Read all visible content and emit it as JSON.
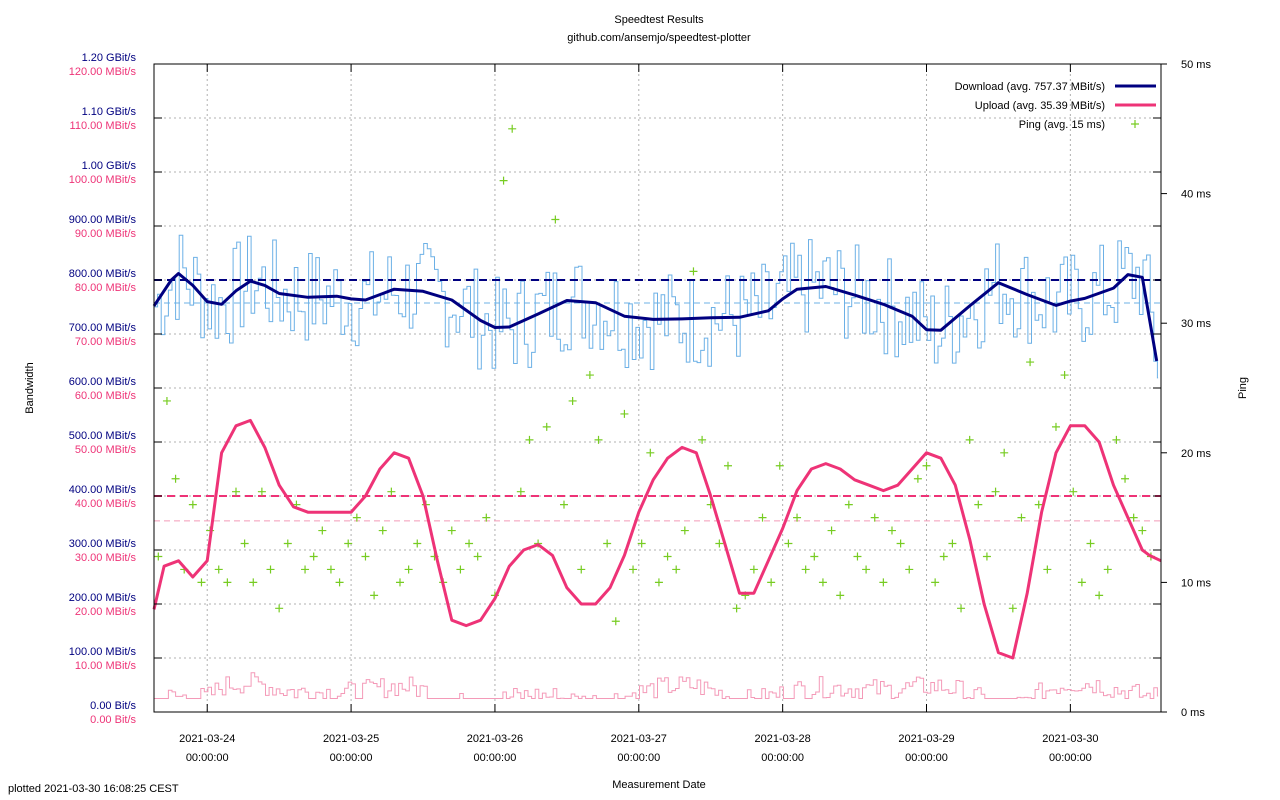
{
  "chart_data": {
    "type": "line",
    "title": "Speedtest Results",
    "subtitle": "github.com/ansemjo/speedtest-plotter",
    "xlabel": "Measurement Date",
    "ylabel": "Bandwidth",
    "y2label": "Ping",
    "footer": "plotted 2021-03-30 16:08:25 CEST",
    "x_ticks": [
      {
        "date": "2021-03-24",
        "time": "00:00:00"
      },
      {
        "date": "2021-03-25",
        "time": "00:00:00"
      },
      {
        "date": "2021-03-26",
        "time": "00:00:00"
      },
      {
        "date": "2021-03-27",
        "time": "00:00:00"
      },
      {
        "date": "2021-03-28",
        "time": "00:00:00"
      },
      {
        "date": "2021-03-29",
        "time": "00:00:00"
      },
      {
        "date": "2021-03-30",
        "time": "00:00:00"
      }
    ],
    "x_range_days": [
      -0.37,
      6.63
    ],
    "y_range_mbits": [
      0,
      1200
    ],
    "y2_range_ms": [
      0,
      50
    ],
    "y_ticks_download": [
      "0.00  Bit/s",
      "100.00 MBit/s",
      "200.00 MBit/s",
      "300.00 MBit/s",
      "400.00 MBit/s",
      "500.00 MBit/s",
      "600.00 MBit/s",
      "700.00 MBit/s",
      "800.00 MBit/s",
      "900.00 MBit/s",
      "1.00 GBit/s",
      "1.10 GBit/s",
      "1.20 GBit/s"
    ],
    "y_ticks_upload": [
      "0.00  Bit/s",
      "10.00 MBit/s",
      "20.00 MBit/s",
      "30.00 MBit/s",
      "40.00 MBit/s",
      "50.00 MBit/s",
      "60.00 MBit/s",
      "70.00 MBit/s",
      "80.00 MBit/s",
      "90.00 MBit/s",
      "100.00 MBit/s",
      "110.00 MBit/s",
      "120.00 MBit/s"
    ],
    "y2_ticks": [
      "0 ms",
      "10 ms",
      "20 ms",
      "30 ms",
      "40 ms",
      "50 ms"
    ],
    "legend": [
      {
        "label": "Download (avg. 757.37 MBit/s)",
        "color": "#000080",
        "kind": "line"
      },
      {
        "label": "Upload (avg. 35.39 MBit/s)",
        "color": "#ee3377",
        "kind": "line"
      },
      {
        "label": "Ping (avg. 15 ms)",
        "color": "#77cc22",
        "kind": "point"
      }
    ],
    "colors": {
      "download": "#000080",
      "download_raw": "#6cb0e6",
      "upload": "#ee3377",
      "upload_raw": "#f49ab8",
      "ping": "#77cc22",
      "axis_download": "#000080",
      "axis_upload": "#ee3377"
    },
    "reference_lines": {
      "download_target_mbits": 800,
      "download_avg_mbits": 757.37,
      "upload_target_mbits": 40,
      "upload_avg_mbits": 35.39
    },
    "series": [
      {
        "name": "Download smoothed (MBit/s)",
        "x": [
          -0.37,
          -0.25,
          -0.2,
          -0.1,
          0,
          0.1,
          0.2,
          0.3,
          0.4,
          0.5,
          0.7,
          0.9,
          1.0,
          1.1,
          1.3,
          1.5,
          1.7,
          1.9,
          2.0,
          2.1,
          2.3,
          2.5,
          2.7,
          2.9,
          3.1,
          3.3,
          3.5,
          3.7,
          3.9,
          4.0,
          4.1,
          4.3,
          4.5,
          4.7,
          4.9,
          5.0,
          5.1,
          5.3,
          5.5,
          5.7,
          5.9,
          6.0,
          6.1,
          6.3,
          6.4,
          6.5,
          6.6
        ],
        "values": [
          752,
          800,
          812,
          790,
          760,
          755,
          780,
          798,
          790,
          775,
          768,
          770,
          765,
          763,
          783,
          779,
          763,
          725,
          712,
          713,
          737,
          762,
          758,
          733,
          727,
          728,
          730,
          731,
          743,
          765,
          783,
          788,
          772,
          755,
          733,
          708,
          707,
          752,
          795,
          773,
          753,
          761,
          766,
          785,
          810,
          805,
          650
        ]
      },
      {
        "name": "Upload smoothed (MBit/s)",
        "x": [
          -0.37,
          -0.3,
          -0.2,
          -0.1,
          0,
          0.1,
          0.2,
          0.3,
          0.4,
          0.5,
          0.6,
          0.7,
          0.8,
          0.9,
          1.0,
          1.1,
          1.2,
          1.3,
          1.4,
          1.5,
          1.6,
          1.7,
          1.8,
          1.9,
          2.0,
          2.1,
          2.2,
          2.3,
          2.4,
          2.5,
          2.6,
          2.7,
          2.8,
          2.9,
          3.0,
          3.1,
          3.2,
          3.3,
          3.4,
          3.5,
          3.6,
          3.7,
          3.8,
          3.9,
          4.0,
          4.1,
          4.2,
          4.3,
          4.4,
          4.5,
          4.6,
          4.7,
          4.8,
          4.9,
          5.0,
          5.1,
          5.2,
          5.3,
          5.4,
          5.5,
          5.6,
          5.7,
          5.8,
          5.9,
          6.0,
          6.1,
          6.2,
          6.3,
          6.4,
          6.5,
          6.55,
          6.63
        ],
        "values": [
          19,
          27,
          28,
          25,
          28,
          48,
          53,
          54,
          49,
          42,
          38,
          37,
          37,
          37,
          37,
          40,
          45,
          48,
          47,
          40,
          28,
          17,
          16,
          17,
          21,
          27,
          30,
          31,
          29,
          23,
          20,
          20,
          23,
          29,
          37,
          43,
          47,
          49,
          48,
          40,
          31,
          22,
          22,
          28,
          34,
          41,
          45,
          46,
          45,
          43,
          42,
          41,
          42,
          45,
          48,
          47,
          42,
          32,
          20,
          11,
          10,
          22,
          37,
          48,
          53,
          53,
          50,
          42,
          36,
          30,
          29,
          28
        ]
      },
      {
        "name": "Ping (ms)",
        "x": [
          -0.34,
          -0.28,
          -0.22,
          -0.16,
          -0.1,
          -0.04,
          0.02,
          0.08,
          0.14,
          0.2,
          0.26,
          0.32,
          0.38,
          0.44,
          0.5,
          0.56,
          0.62,
          0.68,
          0.74,
          0.8,
          0.86,
          0.92,
          0.98,
          1.04,
          1.1,
          1.16,
          1.22,
          1.28,
          1.34,
          1.4,
          1.46,
          1.52,
          1.58,
          1.64,
          1.7,
          1.76,
          1.82,
          1.88,
          1.94,
          2.0,
          2.06,
          2.12,
          2.18,
          2.24,
          2.3,
          2.36,
          2.42,
          2.48,
          2.54,
          2.6,
          2.66,
          2.72,
          2.78,
          2.84,
          2.9,
          2.96,
          3.02,
          3.08,
          3.14,
          3.2,
          3.26,
          3.32,
          3.38,
          3.44,
          3.5,
          3.56,
          3.62,
          3.68,
          3.74,
          3.8,
          3.86,
          3.92,
          3.98,
          4.04,
          4.1,
          4.16,
          4.22,
          4.28,
          4.34,
          4.4,
          4.46,
          4.52,
          4.58,
          4.64,
          4.7,
          4.76,
          4.82,
          4.88,
          4.94,
          5.0,
          5.06,
          5.12,
          5.18,
          5.24,
          5.3,
          5.36,
          5.42,
          5.48,
          5.54,
          5.6,
          5.66,
          5.72,
          5.78,
          5.84,
          5.9,
          5.96,
          6.02,
          6.08,
          6.14,
          6.2,
          6.26,
          6.32,
          6.38,
          6.44,
          6.5,
          6.56
        ],
        "values": [
          12,
          24,
          18,
          11,
          16,
          10,
          14,
          11,
          10,
          17,
          13,
          10,
          17,
          11,
          8,
          13,
          16,
          11,
          12,
          14,
          11,
          10,
          13,
          15,
          12,
          9,
          14,
          17,
          10,
          11,
          13,
          16,
          12,
          10,
          14,
          11,
          13,
          12,
          15,
          9,
          41,
          45,
          17,
          21,
          13,
          22,
          38,
          16,
          24,
          11,
          26,
          21,
          13,
          7,
          23,
          11,
          13,
          20,
          10,
          12,
          11,
          14,
          34,
          21,
          16,
          13,
          19,
          8,
          9,
          11,
          15,
          10,
          19,
          13,
          15,
          11,
          12,
          10,
          14,
          9,
          16,
          12,
          11,
          15,
          10,
          14,
          13,
          11,
          18,
          19,
          10,
          12,
          13,
          8,
          21,
          16,
          12,
          17,
          20,
          8,
          15,
          27,
          16,
          11,
          22,
          26,
          17,
          10,
          13,
          9,
          11,
          21,
          18,
          15,
          14,
          12
        ]
      }
    ]
  }
}
